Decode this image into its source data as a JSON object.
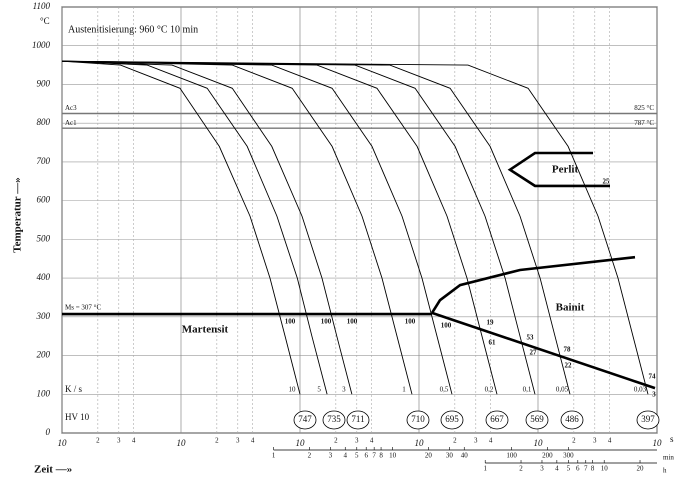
{
  "chart_data": {
    "type": "cct",
    "title": "Austenitisierung: 960 °C 10 min",
    "y_label": "Temperatur —»",
    "x_label": "Zeit —»",
    "y_unit": "°C",
    "x_unit": "s",
    "x_scale": "log",
    "grid": true,
    "xlim": [
      1,
      100000
    ],
    "ylim": [
      0,
      1100
    ],
    "yticks": [
      0,
      100,
      200,
      300,
      400,
      500,
      600,
      700,
      800,
      900,
      1000,
      1100
    ],
    "xticks": [
      {
        "value": 1,
        "label": "10"
      },
      {
        "value": 10,
        "label": "10"
      },
      {
        "value": 100,
        "label": "10"
      },
      {
        "value": 1000,
        "label": "10"
      },
      {
        "value": 10000,
        "label": "10"
      },
      {
        "value": 100000,
        "label": "10"
      }
    ],
    "x_minor_ticks": [
      {
        "value": 2,
        "label": "2"
      },
      {
        "value": 3,
        "label": "3"
      },
      {
        "value": 4,
        "label": "4"
      },
      {
        "value": 20,
        "label": "2"
      },
      {
        "value": 30,
        "label": "3"
      },
      {
        "value": 40,
        "label": "4"
      },
      {
        "value": 200,
        "label": "2"
      },
      {
        "value": 300,
        "label": "3"
      },
      {
        "value": 400,
        "label": "4"
      },
      {
        "value": 2000,
        "label": "2"
      },
      {
        "value": 3000,
        "label": "3"
      },
      {
        "value": 4000,
        "label": "4"
      },
      {
        "value": 20000,
        "label": "2"
      },
      {
        "value": 30000,
        "label": "3"
      },
      {
        "value": 40000,
        "label": "4"
      }
    ],
    "min_axis": {
      "label": "min",
      "seconds_per_unit": 60,
      "ticks": [
        1,
        2,
        3,
        4,
        5,
        6,
        7,
        8,
        10,
        20,
        30,
        40,
        100,
        200,
        300
      ]
    },
    "h_axis": {
      "label": "h",
      "seconds_per_unit": 3600,
      "ticks": [
        1,
        2,
        3,
        4,
        5,
        6,
        7,
        8,
        10,
        20
      ]
    },
    "rate_label": "K / s",
    "hardness_label": "HV 10",
    "levels": [
      {
        "label": "Ac3",
        "value": 825,
        "value_label": "825 °C"
      },
      {
        "label": "Ac1",
        "value": 787,
        "value_label": "787 °C"
      }
    ],
    "boundaries": [
      {
        "label": "Ms = 307 °C",
        "x": [
          1,
          1285
        ],
        "y": [
          307,
          307
        ]
      },
      {
        "x": [
          28980,
          9440,
          5820,
          9440,
          40270
        ],
        "y": [
          723,
          723,
          680,
          638,
          638
        ]
      },
      {
        "x": [
          1285,
          1500,
          2213,
          7060,
          65300
        ],
        "y": [
          310,
          343,
          382,
          421,
          454
        ]
      },
      {
        "x": [
          1285,
          96200
        ],
        "y": [
          310,
          116
        ]
      }
    ],
    "regions": [
      {
        "label": "Perlit"
      },
      {
        "label": "Bainit"
      },
      {
        "label": "Martensit"
      }
    ],
    "curves": [
      {
        "rate": "10",
        "hardness": 747,
        "percents": [
          "100"
        ],
        "x": [
          1,
          3.1,
          9.8,
          21,
          38,
          56,
          75,
          100
        ],
        "y": [
          960,
          950,
          890,
          740,
          560,
          400,
          250,
          100
        ]
      },
      {
        "rate": "5",
        "hardness": 735,
        "percents": [
          "100"
        ],
        "x": [
          1,
          5.2,
          16.6,
          36,
          64,
          95,
          126,
          169
        ],
        "y": [
          960,
          950,
          890,
          740,
          560,
          400,
          250,
          100
        ]
      },
      {
        "rate": "3",
        "hardness": 711,
        "percents": [
          "100"
        ],
        "x": [
          1,
          8.4,
          27,
          58,
          104,
          153,
          204,
          273
        ],
        "y": [
          960,
          950,
          890,
          740,
          560,
          400,
          250,
          100
        ]
      },
      {
        "rate": "1",
        "hardness": 710,
        "percents": [
          "100"
        ],
        "x": [
          1,
          27,
          86,
          186,
          332,
          489,
          653,
          873
        ],
        "y": [
          960,
          950,
          890,
          740,
          560,
          400,
          250,
          100
        ]
      },
      {
        "rate": "0,5",
        "hardness": 695,
        "percents": [
          "100"
        ],
        "x": [
          1,
          58,
          186,
          403,
          719,
          1060,
          1416,
          1893
        ],
        "y": [
          960,
          950,
          890,
          740,
          560,
          400,
          250,
          100
        ]
      },
      {
        "rate": "0,2",
        "hardness": 667,
        "percents": [
          "19",
          "61"
        ],
        "x": [
          1,
          139,
          444,
          963,
          1718,
          2531,
          3381,
          4520
        ],
        "y": [
          960,
          950,
          890,
          740,
          560,
          400,
          250,
          100
        ]
      },
      {
        "rate": "0,1",
        "hardness": 569,
        "percents": [
          "53",
          "27"
        ],
        "x": [
          1,
          290,
          927,
          2011,
          3587,
          5286,
          7061,
          9440
        ],
        "y": [
          960,
          950,
          890,
          740,
          560,
          400,
          250,
          100
        ]
      },
      {
        "rate": "0,05",
        "hardness": 486,
        "percents": [
          "78",
          "22"
        ],
        "x": [
          1,
          570,
          1825,
          3958,
          7060,
          10405,
          13898,
          18580
        ],
        "y": [
          960,
          950,
          890,
          740,
          560,
          400,
          250,
          100
        ]
      },
      {
        "rate": "0,03",
        "hardness": 397,
        "percents": [
          "25",
          "74",
          "3"
        ],
        "x": [
          1,
          2579,
          8249,
          17892,
          31920,
          47040,
          62832,
          84000
        ],
        "y": [
          960,
          950,
          890,
          740,
          560,
          400,
          250,
          100
        ]
      }
    ]
  }
}
